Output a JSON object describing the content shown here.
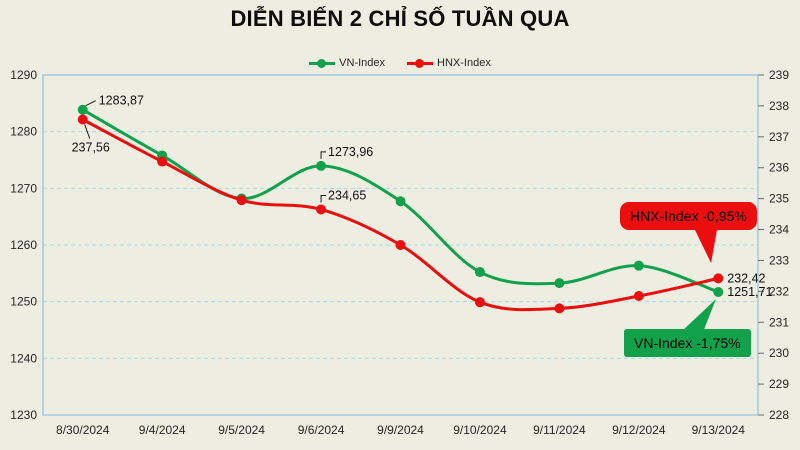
{
  "title": "DIỄN BIẾN 2 CHỈ SỐ TUẦN QUA",
  "colors": {
    "background": "#edeee1",
    "plot_border": "#9fc3e0",
    "gridline": "#a9d9e8",
    "axis_text": "#262626",
    "annotation_text": "#111111",
    "vn_green": "#12a14b",
    "hnx_red": "#ea0e0e"
  },
  "chart_data": {
    "type": "line",
    "categories": [
      "8/30/2024",
      "9/4/2024",
      "9/5/2024",
      "9/6/2024",
      "9/9/2024",
      "9/10/2024",
      "9/11/2024",
      "9/12/2024",
      "9/13/2024"
    ],
    "series": [
      {
        "name": "VN-Index",
        "color": "#12a14b",
        "axis": "left",
        "values": [
          1283.87,
          1275.8,
          1268.2,
          1273.96,
          1267.73,
          1255.23,
          1253.27,
          1256.35,
          1251.71
        ]
      },
      {
        "name": "HNX-Index",
        "color": "#ea0e0e",
        "axis": "right",
        "values": [
          237.56,
          236.2,
          234.95,
          234.65,
          233.5,
          231.65,
          231.45,
          231.85,
          232.42
        ]
      }
    ],
    "left_axis": {
      "min": 1230,
      "max": 1290,
      "step": 10,
      "tick_labels": [
        "1290",
        "1280",
        "1270",
        "1260",
        "1250",
        "1240",
        "1230"
      ]
    },
    "right_axis": {
      "min": 228,
      "max": 239,
      "step": 1,
      "tick_labels": [
        "239",
        "238",
        "237",
        "236",
        "235",
        "234",
        "233",
        "232",
        "231",
        "230",
        "229",
        "228"
      ]
    },
    "title": "DIỄN BIẾN 2 CHỈ SỐ TUẦN QUA",
    "legend_position": "top",
    "grid": "horizontal-dashed",
    "line_style": "smooth-with-markers"
  },
  "annotations": [
    {
      "series": "VN-Index",
      "point_index": 0,
      "text": "1283,87"
    },
    {
      "series": "HNX-Index",
      "point_index": 0,
      "text": "237,56"
    },
    {
      "series": "VN-Index",
      "point_index": 3,
      "text": "1273,96"
    },
    {
      "series": "HNX-Index",
      "point_index": 3,
      "text": "234,65"
    },
    {
      "series": "HNX-Index",
      "point_index": 8,
      "text": "232,42"
    },
    {
      "series": "VN-Index",
      "point_index": 8,
      "text": "1251,71"
    }
  ],
  "callouts": {
    "hnx": {
      "text": "HNX-Index -0,95%",
      "color": "#ea0e0e"
    },
    "vn": {
      "text": "VN-Index -1,75%",
      "color": "#12a14b"
    }
  }
}
